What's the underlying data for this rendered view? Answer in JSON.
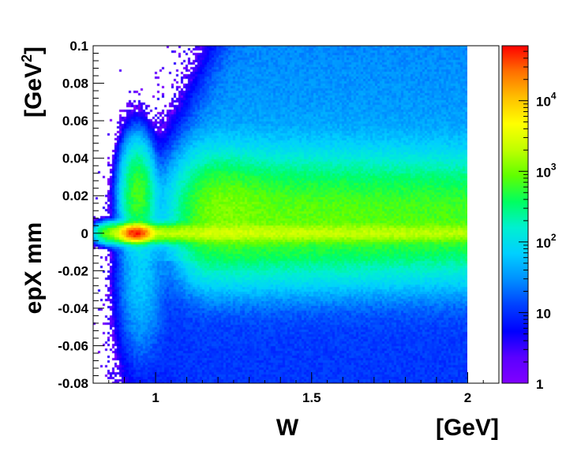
{
  "chart_data": {
    "type": "heatmap",
    "title": "",
    "xlabel": "W",
    "xunit": "[GeV]",
    "ylabel": "epX mm",
    "yunit": "[GeV",
    "yunit_sup": "2",
    "yunit_close": "]",
    "xlim": [
      0.8,
      2.1
    ],
    "ylim": [
      -0.08,
      0.1
    ],
    "data_xrange": [
      0.8,
      2.0
    ],
    "z_scale": "log",
    "zlim": [
      1,
      60000
    ],
    "x_ticks": [
      {
        "value": 1,
        "label": "1"
      },
      {
        "value": 1.5,
        "label": "1.5"
      },
      {
        "value": 2,
        "label": "2"
      }
    ],
    "y_ticks": [
      {
        "value": -0.08,
        "label": "-0.08"
      },
      {
        "value": -0.06,
        "label": "-0.06"
      },
      {
        "value": -0.04,
        "label": "-0.04"
      },
      {
        "value": -0.02,
        "label": "-0.02"
      },
      {
        "value": 0,
        "label": "0"
      },
      {
        "value": 0.02,
        "label": "0.02"
      },
      {
        "value": 0.04,
        "label": "0.04"
      },
      {
        "value": 0.06,
        "label": "0.06"
      },
      {
        "value": 0.08,
        "label": "0.08"
      },
      {
        "value": 0.1,
        "label": "0.1"
      }
    ],
    "z_ticks": [
      {
        "value": 1,
        "label": "1",
        "base": "1",
        "exp": ""
      },
      {
        "value": 10,
        "label": "10",
        "base": "10",
        "exp": ""
      },
      {
        "value": 100,
        "label": "10^2",
        "base": "10",
        "exp": "2"
      },
      {
        "value": 1000,
        "label": "10^3",
        "base": "10",
        "exp": "3"
      },
      {
        "value": 10000,
        "label": "10^4",
        "base": "10",
        "exp": "4"
      }
    ],
    "features": [
      {
        "name": "elastic peak",
        "x": 0.938,
        "y": 0.0,
        "peak_counts": 50000
      },
      {
        "name": "upper lobe",
        "x": 0.94,
        "y": 0.02,
        "peak_counts": 600
      },
      {
        "name": "central band",
        "x_range": [
          1.1,
          2.0
        ],
        "y": 0.005,
        "peak_counts": 1500
      }
    ],
    "colormap": [
      "#8000ff",
      "#5a00ff",
      "#0000ff",
      "#0040ff",
      "#0090ff",
      "#00d0ff",
      "#00f0d0",
      "#00ff60",
      "#60ff00",
      "#c0ff00",
      "#ffff00",
      "#ffc000",
      "#ff7000",
      "#ff0000"
    ]
  }
}
